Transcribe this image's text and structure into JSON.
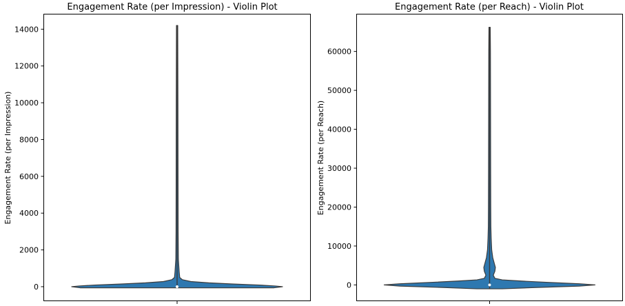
{
  "chart_data": [
    {
      "type": "violin",
      "title": "Engagement Rate (per Impression) - Violin Plot",
      "xlabel": "",
      "ylabel": "Engagement Rate (per Impression)",
      "ylim": [
        -750,
        14800
      ],
      "yticks": [
        0,
        2000,
        4000,
        6000,
        8000,
        10000,
        12000,
        14000
      ],
      "grid": false,
      "color": "#2e78b0",
      "outline_color": "#3b3b3b",
      "median": 0,
      "range": [
        -60,
        14200
      ],
      "profile": [
        [
          -60,
          0.92
        ],
        [
          0,
          1.0
        ],
        [
          40,
          0.93
        ],
        [
          90,
          0.78
        ],
        [
          150,
          0.52
        ],
        [
          210,
          0.3
        ],
        [
          280,
          0.13
        ],
        [
          380,
          0.05
        ],
        [
          500,
          0.025
        ],
        [
          800,
          0.02
        ],
        [
          1500,
          0.012
        ],
        [
          3000,
          0.01
        ],
        [
          6000,
          0.009
        ],
        [
          10000,
          0.008
        ],
        [
          14200,
          0.006
        ]
      ]
    },
    {
      "type": "violin",
      "title": "Engagement Rate (per Reach) - Violin Plot",
      "xlabel": "",
      "ylabel": "Engagement Rate (per Reach)",
      "ylim": [
        -4000,
        69500
      ],
      "yticks": [
        0,
        10000,
        20000,
        30000,
        40000,
        50000,
        60000
      ],
      "grid": false,
      "color": "#2e78b0",
      "outline_color": "#3b3b3b",
      "median": 0,
      "range": [
        -1000,
        66200
      ],
      "profile": [
        [
          -1000,
          0.12
        ],
        [
          -700,
          0.4
        ],
        [
          -300,
          0.85
        ],
        [
          0,
          1.0
        ],
        [
          300,
          0.85
        ],
        [
          700,
          0.52
        ],
        [
          1000,
          0.3
        ],
        [
          1300,
          0.12
        ],
        [
          1700,
          0.05
        ],
        [
          2500,
          0.035
        ],
        [
          3500,
          0.05
        ],
        [
          4500,
          0.055
        ],
        [
          5500,
          0.045
        ],
        [
          7000,
          0.03
        ],
        [
          9000,
          0.02
        ],
        [
          12000,
          0.015
        ],
        [
          15000,
          0.012
        ],
        [
          20000,
          0.011
        ],
        [
          30000,
          0.01
        ],
        [
          45000,
          0.009
        ],
        [
          60000,
          0.008
        ],
        [
          66200,
          0.006
        ]
      ]
    }
  ]
}
